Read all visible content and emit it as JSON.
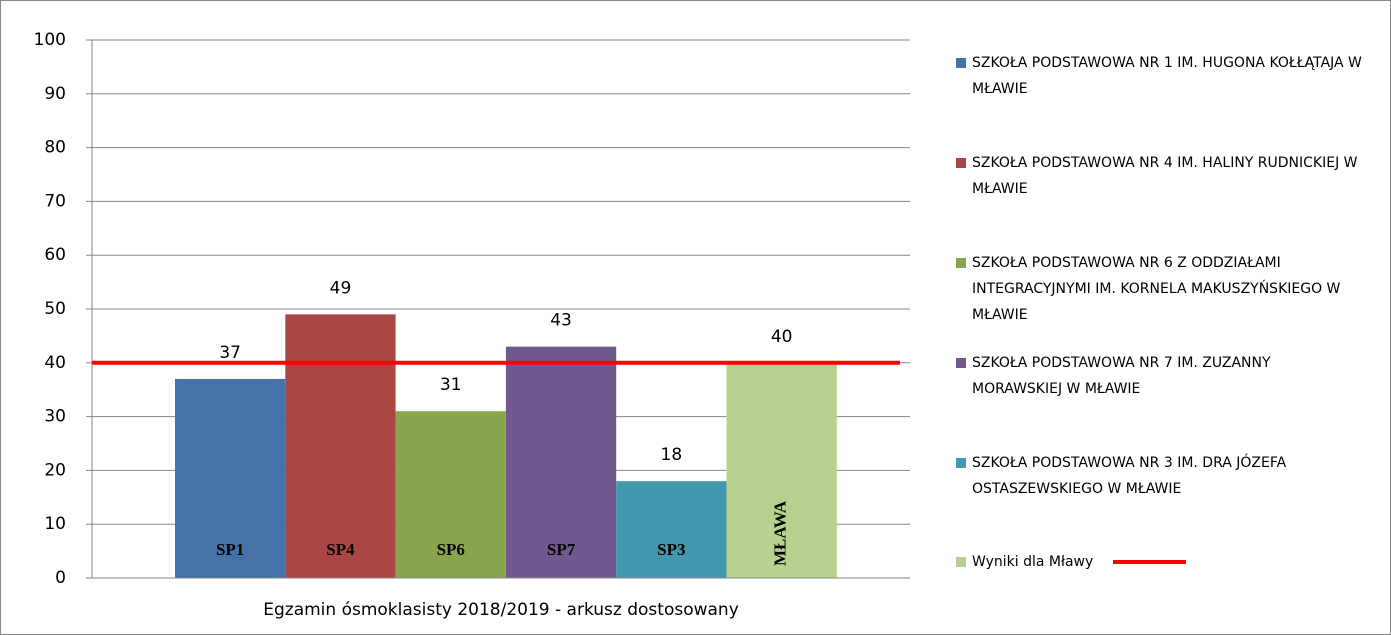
{
  "chart_data": {
    "type": "bar",
    "category": "Egzamin ósmoklasisty 2018/2019 - arkusz dostosowany",
    "series": [
      {
        "name": "SZKOŁA PODSTAWOWA NR 1 IM. HUGONA KOŁŁĄTAJA W MŁAWIE",
        "color": "#4572a7",
        "values": [
          37
        ],
        "label": "SP1"
      },
      {
        "name": "SZKOŁA PODSTAWOWA NR 4 IM. HALINY RUDNICKIEJ W MŁAWIE",
        "color": "#aa4643",
        "values": [
          49
        ],
        "label": "SP4"
      },
      {
        "name": "SZKOŁA PODSTAWOWA NR 6 Z ODDZIAŁAMI INTEGRACYJNYMI IM. KORNELA MAKUSZYŃSKIEGO W MŁAWIE",
        "color": "#89a54e",
        "values": [
          31
        ],
        "label": "SP6"
      },
      {
        "name": "SZKOŁA PODSTAWOWA NR 7 IM. ZUZANNY MORAWSKIEJ W MŁAWIE",
        "color": "#71588f",
        "values": [
          43
        ],
        "label": "SP7"
      },
      {
        "name": "SZKOŁA PODSTAWOWA NR 3 IM. DRA JÓZEFA OSTASZEWSKIEGO W MŁAWIE",
        "color": "#4198af",
        "values": [
          18
        ],
        "label": "SP3"
      },
      {
        "name": "Wyniki dla Mławy",
        "color": "#b9d18f",
        "values": [
          40
        ],
        "label": "MŁAWA",
        "label_orientation": "vertical"
      }
    ],
    "reference_line": {
      "value": 40,
      "color": "#ff0000"
    },
    "ylim": [
      0,
      100
    ],
    "yticks": [
      0,
      10,
      20,
      30,
      40,
      50,
      60,
      70,
      80,
      90,
      100
    ],
    "grid": true,
    "legend": "right"
  }
}
